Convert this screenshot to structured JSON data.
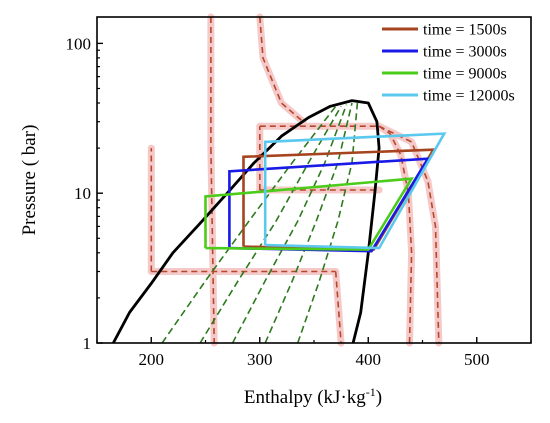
{
  "chart_data": {
    "type": "line",
    "title": "",
    "xlabel": "Enthalpy (kJ·kg",
    "xlabel_sup": "-1",
    "xlabel_close": ")",
    "ylabel": "Pressure ( bar)",
    "xlim": [
      150,
      550
    ],
    "ylim": [
      1,
      150
    ],
    "yscale": "log",
    "xticks": [
      200,
      300,
      400,
      500
    ],
    "xtick_labels": [
      "200",
      "300",
      "400",
      "500"
    ],
    "yticks": [
      1,
      10,
      100
    ],
    "ytick_labels": [
      "1",
      "10",
      "100"
    ],
    "grid": false,
    "legend_position": "top-right",
    "saturation_dome": {
      "color": "#000000",
      "points": [
        [
          165,
          1
        ],
        [
          180,
          1.6
        ],
        [
          200,
          2.5
        ],
        [
          220,
          4
        ],
        [
          245,
          6.3
        ],
        [
          270,
          10
        ],
        [
          295,
          16
        ],
        [
          320,
          24
        ],
        [
          345,
          32
        ],
        [
          365,
          38
        ],
        [
          385,
          41.5
        ],
        [
          400,
          40
        ],
        [
          408,
          30
        ],
        [
          410,
          20
        ],
        [
          406,
          10
        ],
        [
          400,
          4
        ],
        [
          393,
          1.6
        ],
        [
          386,
          1
        ]
      ]
    },
    "quality_lines": {
      "color": "#2d7a1e",
      "lines": [
        [
          [
            210,
            1
          ],
          [
            250,
            2.6
          ],
          [
            290,
            6.5
          ],
          [
            330,
            16
          ],
          [
            370,
            38
          ]
        ],
        [
          [
            245,
            1
          ],
          [
            280,
            2.6
          ],
          [
            315,
            6.5
          ],
          [
            345,
            16
          ],
          [
            375,
            38
          ]
        ],
        [
          [
            275,
            1
          ],
          [
            305,
            2.6
          ],
          [
            335,
            6.5
          ],
          [
            360,
            16
          ],
          [
            380,
            39
          ]
        ],
        [
          [
            305,
            1
          ],
          [
            330,
            2.6
          ],
          [
            352,
            6.5
          ],
          [
            372,
            16
          ],
          [
            385,
            40
          ]
        ],
        [
          [
            335,
            1
          ],
          [
            355,
            2.6
          ],
          [
            372,
            6.5
          ],
          [
            385,
            16
          ],
          [
            390,
            40
          ]
        ]
      ]
    },
    "reference_cycle": {
      "color": "#b5482c",
      "glow": "#f6c9c9",
      "lines": [
        [
          [
            200,
            3
          ],
          [
            200,
            20
          ]
        ],
        [
          [
            200,
            3
          ],
          [
            370,
            3
          ]
        ],
        [
          [
            370,
            3
          ],
          [
            375,
            1
          ]
        ],
        [
          [
            255,
            150
          ],
          [
            255,
            20
          ]
        ],
        [
          [
            255,
            20
          ],
          [
            258,
            1
          ]
        ],
        [
          [
            300,
            28
          ],
          [
            410,
            28
          ]
        ],
        [
          [
            300,
            10.5
          ],
          [
            410,
            10.5
          ]
        ],
        [
          [
            300,
            10.5
          ],
          [
            300,
            28
          ]
        ],
        [
          [
            300,
            150
          ],
          [
            303,
            80
          ],
          [
            320,
            40
          ],
          [
            340,
            30
          ]
        ],
        [
          [
            410,
            28
          ],
          [
            420,
            25
          ],
          [
            430,
            18
          ],
          [
            437,
            10
          ],
          [
            440,
            4
          ],
          [
            438,
            1
          ]
        ],
        [
          [
            410,
            28
          ],
          [
            440,
            22
          ],
          [
            455,
            12
          ],
          [
            462,
            6
          ],
          [
            465,
            1
          ]
        ]
      ]
    },
    "series": [
      {
        "name": "time = 1500s",
        "color": "#a64420",
        "points": [
          [
            285,
            4.4
          ],
          [
            285,
            17.5
          ],
          [
            460,
            19.5
          ],
          [
            405,
            4.2
          ],
          [
            285,
            4.4
          ]
        ]
      },
      {
        "name": "time = 3000s",
        "color": "#1a1ae6",
        "points": [
          [
            272,
            4.3
          ],
          [
            272,
            14
          ],
          [
            455,
            17
          ],
          [
            403,
            4.1
          ],
          [
            272,
            4.3
          ]
        ]
      },
      {
        "name": "time = 9000s",
        "color": "#4ccc1a",
        "points": [
          [
            250,
            4.3
          ],
          [
            250,
            9.5
          ],
          [
            440,
            12.5
          ],
          [
            400,
            4.2
          ],
          [
            250,
            4.3
          ]
        ]
      },
      {
        "name": "time = 12000s",
        "color": "#5bc8ee",
        "points": [
          [
            305,
            4.5
          ],
          [
            305,
            22
          ],
          [
            470,
            25
          ],
          [
            410,
            4.3
          ],
          [
            305,
            4.5
          ]
        ]
      }
    ]
  }
}
